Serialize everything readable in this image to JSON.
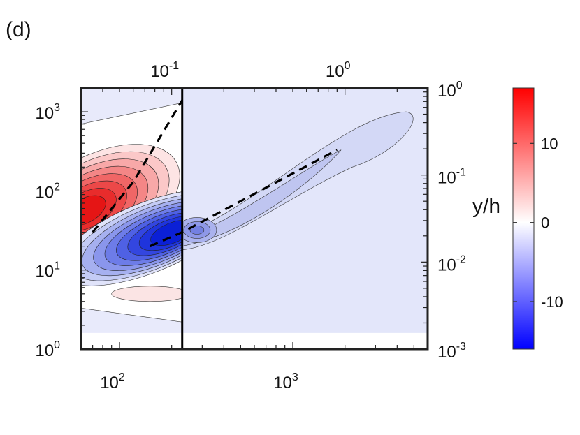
{
  "panel_label": "(d)",
  "chart_data": {
    "type": "heatmap",
    "title": "",
    "xlabel": "",
    "ylabel": "",
    "right_ylabel": "y/h",
    "x_scale": "log",
    "y_scale": "log",
    "xlim": [
      60,
      6000
    ],
    "ylim": [
      1,
      2000
    ],
    "bottom_xticks": [
      {
        "base": "10",
        "exp": "2"
      },
      {
        "base": "10",
        "exp": "3"
      }
    ],
    "left_yticks": [
      {
        "base": "10",
        "exp": "0"
      },
      {
        "base": "10",
        "exp": "1"
      },
      {
        "base": "10",
        "exp": "2"
      },
      {
        "base": "10",
        "exp": "3"
      }
    ],
    "top_xticks": [
      {
        "base": "10",
        "exp": "-1"
      },
      {
        "base": "10",
        "exp": "0"
      }
    ],
    "right_yticks": [
      {
        "base": "10",
        "exp": "-3"
      },
      {
        "base": "10",
        "exp": "-2"
      },
      {
        "base": "10",
        "exp": "-1"
      },
      {
        "base": "10",
        "exp": "0"
      }
    ],
    "vertical_line_x": 230,
    "dashed_lines": [
      {
        "points": [
          [
            70,
            30
          ],
          [
            120,
            130
          ],
          [
            230,
            1400
          ]
        ]
      },
      {
        "points": [
          [
            150,
            20
          ],
          [
            230,
            30
          ],
          [
            1800,
            330
          ]
        ]
      }
    ],
    "features": [
      {
        "sign": "positive",
        "x": 62,
        "y": 55,
        "peak": 17
      },
      {
        "sign": "negative",
        "x": 210,
        "y": 30,
        "peak": -16
      },
      {
        "sign": "negative",
        "x": 280,
        "y": 32,
        "peak": -6
      },
      {
        "sign": "negative",
        "x": 900,
        "y": 120,
        "peak": -3
      }
    ],
    "colorbar": {
      "colors": [
        "#0000ff",
        "#ffffff",
        "#ff0000"
      ],
      "range": [
        -16,
        17
      ],
      "ticks": [
        {
          "value": -10,
          "label": "-10"
        },
        {
          "value": 0,
          "label": "0"
        },
        {
          "value": 10,
          "label": "10"
        }
      ]
    },
    "grid": false,
    "legend": "none"
  }
}
